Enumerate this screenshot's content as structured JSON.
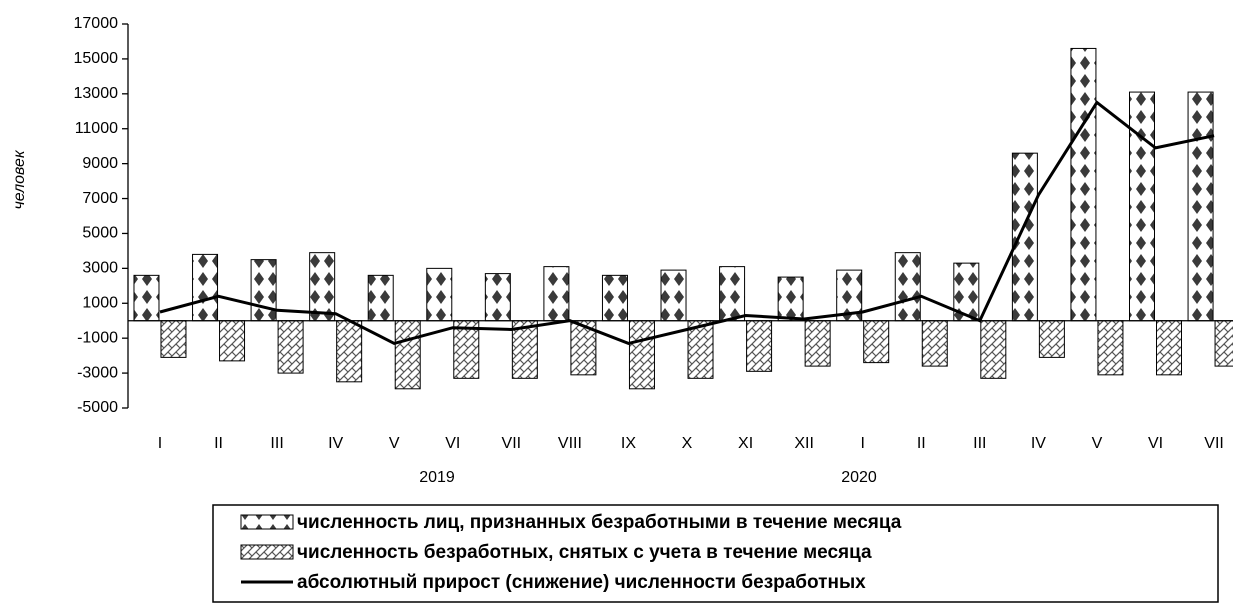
{
  "chart_data": {
    "type": "bar",
    "y_label": "человек",
    "categories": [
      "I",
      "II",
      "III",
      "IV",
      "V",
      "VI",
      "VII",
      "VIII",
      "IX",
      "X",
      "XI",
      "XII",
      "I",
      "II",
      "III",
      "IV",
      "V",
      "VI",
      "VII"
    ],
    "x_groups": [
      "2019",
      "2020"
    ],
    "ylim": [
      -5000,
      17000
    ],
    "yticks": [
      -5000,
      -3000,
      -1000,
      1000,
      3000,
      5000,
      7000,
      9000,
      11000,
      13000,
      15000,
      17000
    ],
    "series": [
      {
        "name": "численность лиц, признанных безработными в течение месяца",
        "type": "bar",
        "color": "#3a3a3a",
        "values": [
          2600,
          3800,
          3500,
          3900,
          2600,
          3000,
          2700,
          3100,
          2600,
          2900,
          3100,
          2500,
          2900,
          3900,
          3300,
          9600,
          15600,
          13100,
          13100
        ]
      },
      {
        "name": "численность безработных, снятых с учета в течение месяца",
        "type": "bar",
        "color": "#555555",
        "values": [
          -2100,
          -2300,
          -3000,
          -3500,
          -3900,
          -3300,
          -3300,
          -3100,
          -3900,
          -3300,
          -2900,
          -2600,
          -2400,
          -2600,
          -3300,
          -2100,
          -3100,
          -3100,
          -2600
        ]
      },
      {
        "name": "абсолютный прирост (снижение) численности безработных",
        "type": "line",
        "color": "#000000",
        "values": [
          500,
          1400,
          600,
          400,
          -1300,
          -400,
          -500,
          0,
          -1300,
          -500,
          300,
          100,
          500,
          1400,
          0,
          7200,
          12500,
          9900,
          10600
        ]
      }
    ]
  }
}
